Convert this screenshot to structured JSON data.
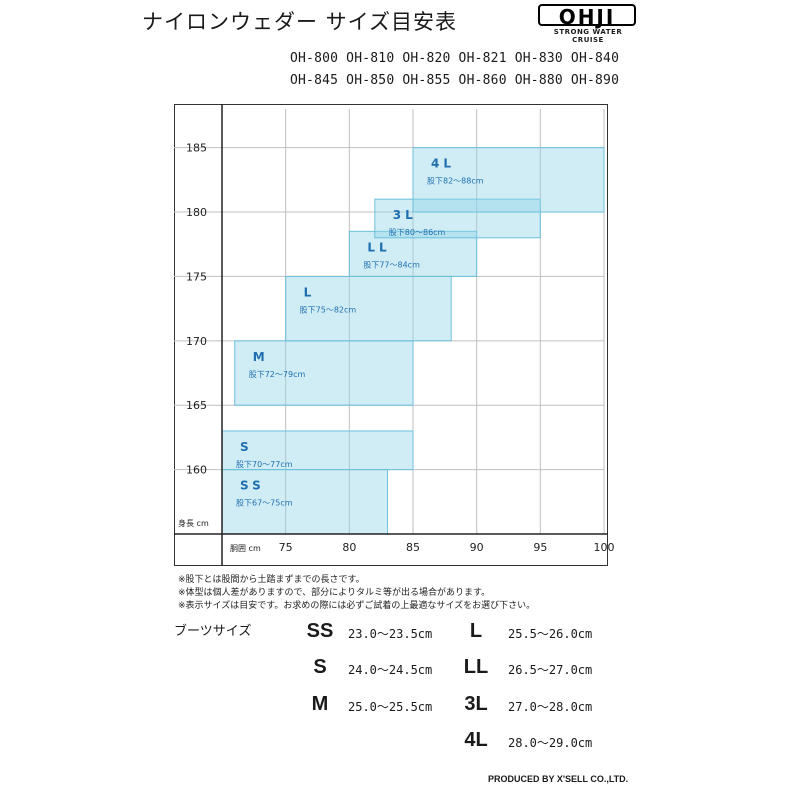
{
  "title": "ナイロンウェダー サイズ目安表",
  "logo": {
    "mark": "OHJI",
    "tagline": "STRONG WATER CRUISE"
  },
  "models": {
    "line1": "OH-800 OH-810 OH-820 OH-821 OH-830 OH-840",
    "line2": "OH-845 OH-850 OH-855 OH-860 OH-880 OH-890"
  },
  "chart_data": {
    "type": "area",
    "xlabel": "胴囲 cm",
    "ylabel": "身長 cm",
    "x_ticks": [
      75,
      80,
      85,
      90,
      95,
      100
    ],
    "y_ticks": [
      160,
      165,
      170,
      175,
      180,
      185
    ],
    "xlim": [
      70,
      100
    ],
    "ylim": [
      155,
      188
    ],
    "grid": true,
    "color": "#8fd3e8",
    "regions": [
      {
        "name": "SS",
        "inseam": "股下67〜75cm",
        "x": [
          70,
          83
        ],
        "y": [
          155,
          160
        ]
      },
      {
        "name": "S",
        "inseam": "股下70〜77cm",
        "x": [
          70,
          85
        ],
        "y": [
          160,
          163
        ]
      },
      {
        "name": "M",
        "inseam": "股下72〜79cm",
        "x": [
          71,
          85
        ],
        "y": [
          165,
          170
        ]
      },
      {
        "name": "L",
        "inseam": "股下75〜82cm",
        "x": [
          75,
          88
        ],
        "y": [
          170,
          175
        ]
      },
      {
        "name": "LL",
        "inseam": "股下77〜84cm",
        "x": [
          80,
          90
        ],
        "y": [
          175,
          178.5
        ]
      },
      {
        "name": "3L",
        "inseam": "股下80〜86cm",
        "x": [
          82,
          95
        ],
        "y": [
          178,
          181
        ]
      },
      {
        "name": "4L",
        "inseam": "股下82〜88cm",
        "x": [
          85,
          100
        ],
        "y": [
          180,
          185
        ]
      }
    ]
  },
  "notes": [
    "※股下とは股間から土踏まずまでの長さです。",
    "※体型は個人差がありますので、部分によりタルミ等が出る場合があります。",
    "※表示サイズは目安です。お求めの際には必ずご試着の上最適なサイズをお選び下さい。"
  ],
  "boots": {
    "label": "ブーツサイズ",
    "sizes": [
      {
        "size": "SS",
        "range": "23.0〜23.5cm"
      },
      {
        "size": "S",
        "range": "24.0〜24.5cm"
      },
      {
        "size": "M",
        "range": "25.0〜25.5cm"
      },
      {
        "size": "L",
        "range": "25.5〜26.0cm"
      },
      {
        "size": "LL",
        "range": "26.5〜27.0cm"
      },
      {
        "size": "3L",
        "range": "27.0〜28.0cm"
      },
      {
        "size": "4L",
        "range": "28.0〜29.0cm"
      }
    ]
  },
  "footer": "PRODUCED BY X'SELL CO.,LTD."
}
